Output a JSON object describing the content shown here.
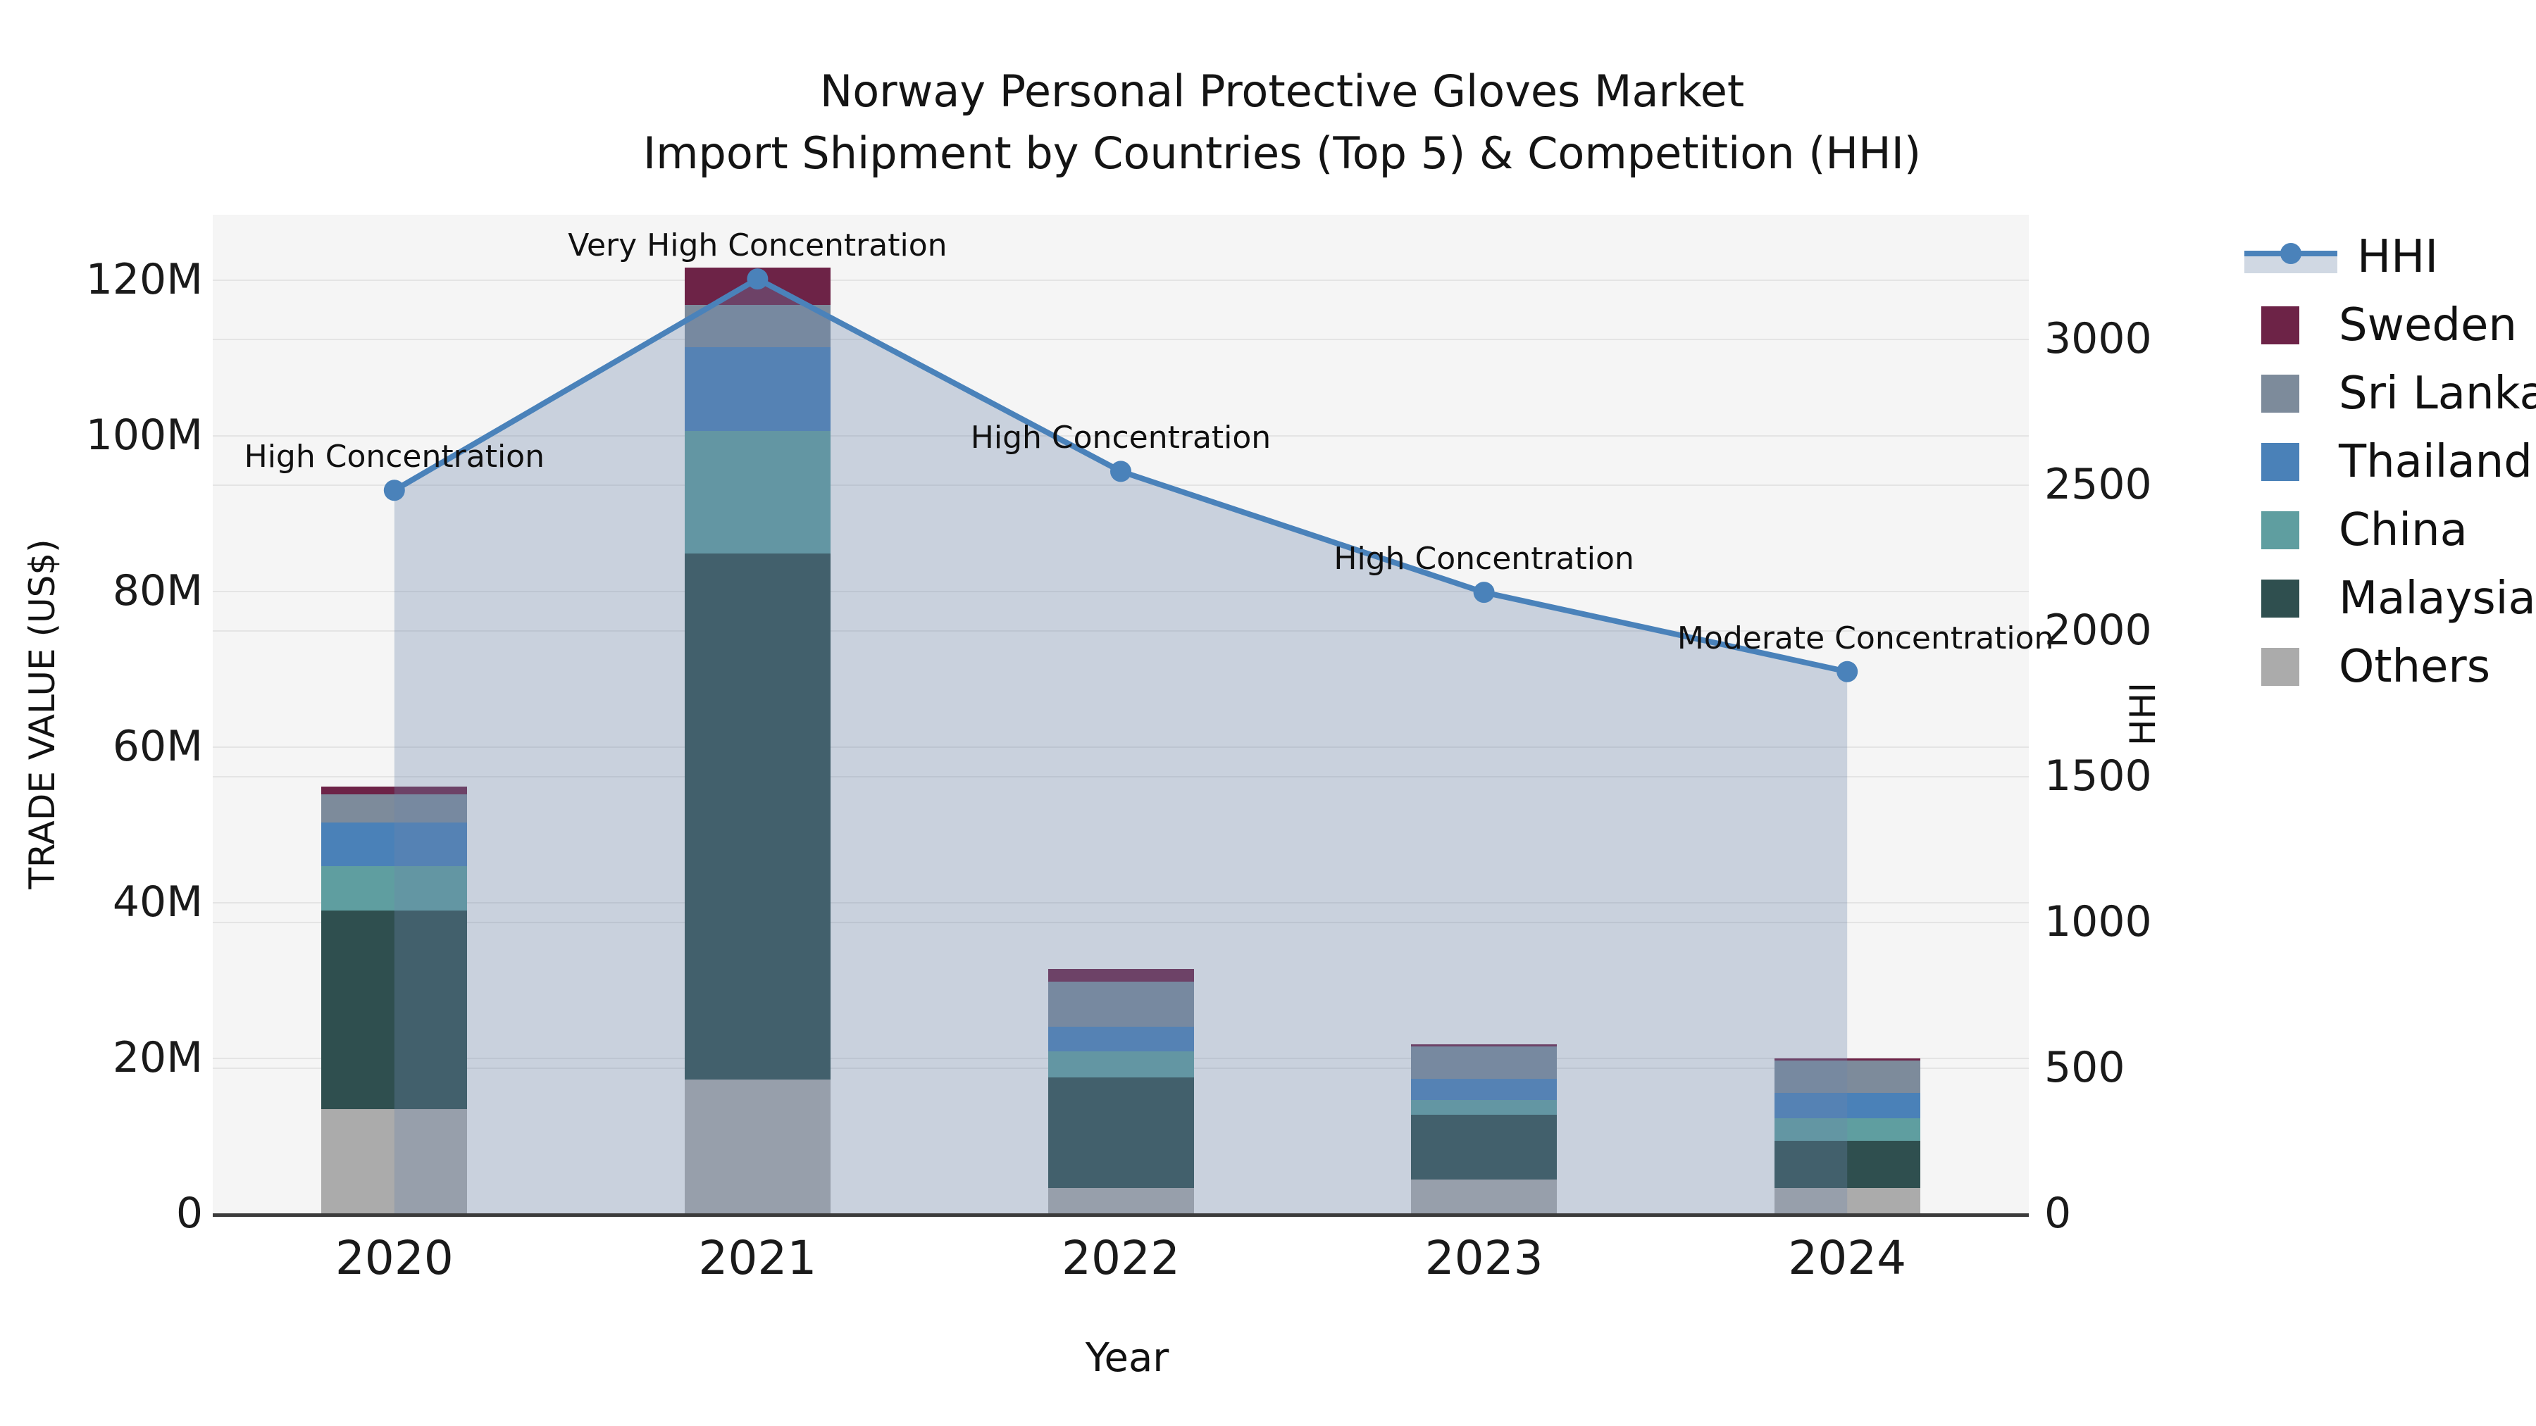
{
  "title": {
    "line1": "Norway Personal Protective Gloves Market",
    "line2": "Import Shipment by Countries (Top 5) & Competition (HHI)"
  },
  "legend": {
    "items": [
      {
        "label": "HHI",
        "type": "line",
        "color": "#4a82ba"
      },
      {
        "label": "Sweden",
        "type": "swatch",
        "color": "#6d2347"
      },
      {
        "label": "Sri Lanka",
        "type": "swatch",
        "color": "#7d8b9b"
      },
      {
        "label": "Thailand",
        "type": "swatch",
        "color": "#4a81b8"
      },
      {
        "label": "China",
        "type": "swatch",
        "color": "#5f9ea0"
      },
      {
        "label": "Malaysia",
        "type": "swatch",
        "color": "#2f4f4f"
      },
      {
        "label": "Others",
        "type": "swatch",
        "color": "#ababab"
      }
    ]
  },
  "chart_data": {
    "type": "combo-stacked-bar-line",
    "categories": [
      "2020",
      "2021",
      "2022",
      "2023",
      "2024"
    ],
    "bar_value_unit": "million US$",
    "series": [
      {
        "name": "Others",
        "color": "#ababab",
        "values": [
          13.4,
          17.2,
          3.3,
          4.3,
          3.3
        ]
      },
      {
        "name": "Malaysia",
        "color": "#2f4f4f",
        "values": [
          25.5,
          67.6,
          14.2,
          8.4,
          6.0
        ]
      },
      {
        "name": "China",
        "color": "#5f9ea0",
        "values": [
          5.7,
          15.7,
          3.3,
          1.9,
          2.9
        ]
      },
      {
        "name": "Thailand",
        "color": "#4a81b8",
        "values": [
          5.6,
          10.8,
          3.2,
          2.7,
          3.3
        ]
      },
      {
        "name": "Sri Lanka",
        "color": "#7d8b9b",
        "values": [
          3.6,
          5.4,
          5.8,
          4.1,
          4.1
        ]
      },
      {
        "name": "Sweden",
        "color": "#6d2347",
        "values": [
          1.0,
          4.8,
          1.6,
          0.3,
          0.3
        ]
      }
    ],
    "bar_totals": [
      54.8,
      121.5,
      31.4,
      21.7,
      19.9
    ],
    "line": {
      "name": "HHI",
      "color": "#4a82ba",
      "area_fill": "rgba(110,135,170,0.32)",
      "values": [
        2480,
        3205,
        2545,
        2130,
        1858
      ]
    },
    "annotations": [
      "High Concentration",
      "Very High Concentration",
      "High Concentration",
      "High Concentration",
      "Moderate Concentration"
    ],
    "left_axis": {
      "label": "TRADE VALUE (US$)",
      "tick_labels": [
        "0",
        "20M",
        "40M",
        "60M",
        "80M",
        "100M",
        "120M"
      ],
      "tick_values": [
        0,
        20,
        40,
        60,
        80,
        100,
        120
      ],
      "range": [
        0,
        128.3
      ]
    },
    "right_axis": {
      "label": "HHI",
      "tick_labels": [
        "0",
        "500",
        "1000",
        "1500",
        "2000",
        "2500",
        "3000"
      ],
      "tick_values": [
        0,
        500,
        1000,
        1500,
        2000,
        2500,
        3000
      ],
      "range": [
        0,
        3425
      ]
    },
    "x_axis": {
      "label": "Year"
    },
    "layout": {
      "grid": true,
      "legend_position": "right",
      "plot_background": "#f5f5f5"
    }
  }
}
